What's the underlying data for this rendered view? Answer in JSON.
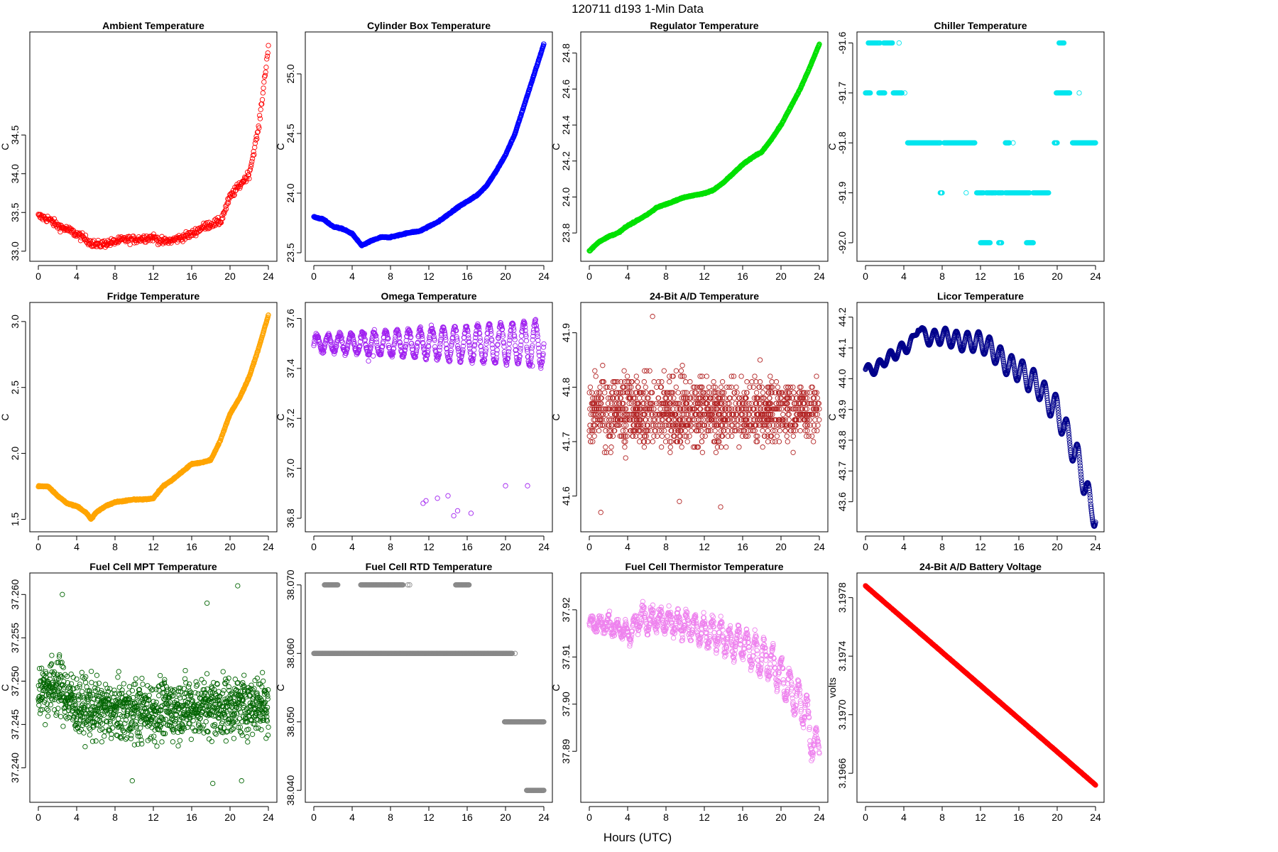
{
  "figure": {
    "title": "120711    d193    1-Min Data",
    "xlabel": "Hours (UTC)"
  },
  "chart_data": [
    {
      "type": "scatter",
      "title": "Ambient Temperature",
      "ylabel": "C",
      "color": "#ff0000",
      "xlim": [
        0,
        24
      ],
      "ylim": [
        32.98,
        35.72
      ],
      "xticks": [
        0,
        4,
        8,
        12,
        16,
        20,
        24
      ],
      "xtick_labels": [
        "0",
        "4",
        "8",
        "12",
        "16",
        "20",
        "24"
      ],
      "yticks": [
        33.0,
        33.5,
        34.0,
        34.5
      ],
      "ytick_labels": [
        "33.0",
        "33.5",
        "34.0",
        "34.5"
      ],
      "x": [
        0,
        1,
        2,
        3,
        4,
        5,
        6,
        7,
        8,
        9,
        10,
        11,
        12,
        13,
        14,
        15,
        16,
        17,
        18,
        19,
        20,
        21,
        22,
        23,
        24
      ],
      "y": [
        33.45,
        33.42,
        33.33,
        33.28,
        33.22,
        33.15,
        33.08,
        33.1,
        33.12,
        33.15,
        33.15,
        33.17,
        33.18,
        33.12,
        33.14,
        33.18,
        33.22,
        33.3,
        33.35,
        33.38,
        33.7,
        33.85,
        34.0,
        34.6,
        35.65
      ],
      "noise": 0.05,
      "n_points": 420
    },
    {
      "type": "scatter",
      "title": "Cylinder Box Temperature",
      "ylabel": "C",
      "color": "#0000ff",
      "xlim": [
        0,
        24
      ],
      "ylim": [
        23.5,
        25.28
      ],
      "xticks": [
        0,
        4,
        8,
        12,
        16,
        20,
        24
      ],
      "xtick_labels": [
        "0",
        "4",
        "8",
        "12",
        "16",
        "20",
        "24"
      ],
      "yticks": [
        23.5,
        24.0,
        24.5,
        25.0
      ],
      "ytick_labels": [
        "23.5",
        "24.0",
        "24.5",
        "25.0"
      ],
      "x": [
        0,
        1,
        2,
        3,
        4,
        5,
        6,
        7,
        8,
        9,
        10,
        11,
        12,
        13,
        14,
        15,
        16,
        17,
        18,
        19,
        20,
        21,
        22,
        23,
        24
      ],
      "y": [
        23.8,
        23.78,
        23.72,
        23.7,
        23.66,
        23.56,
        23.6,
        23.63,
        23.63,
        23.65,
        23.67,
        23.68,
        23.72,
        23.76,
        23.82,
        23.88,
        23.93,
        23.98,
        24.06,
        24.18,
        24.32,
        24.5,
        24.75,
        25.0,
        25.25
      ],
      "noise": 0.005,
      "n_points": 900
    },
    {
      "type": "scatter",
      "title": "Regulator Temperature",
      "ylabel": "C",
      "color": "#00e000",
      "xlim": [
        0,
        24
      ],
      "ylim": [
        23.69,
        24.87
      ],
      "xticks": [
        0,
        4,
        8,
        12,
        16,
        20,
        24
      ],
      "xtick_labels": [
        "0",
        "4",
        "8",
        "12",
        "16",
        "20",
        "24"
      ],
      "yticks": [
        23.8,
        24.0,
        24.2,
        24.4,
        24.6,
        24.8
      ],
      "ytick_labels": [
        "23.8",
        "24.0",
        "24.2",
        "24.4",
        "24.6",
        "24.8"
      ],
      "x": [
        0,
        1,
        2,
        3,
        4,
        5,
        6,
        7,
        8,
        9,
        10,
        11,
        12,
        13,
        14,
        15,
        16,
        17,
        18,
        19,
        20,
        21,
        22,
        23,
        24
      ],
      "y": [
        23.7,
        23.75,
        23.78,
        23.8,
        23.84,
        23.87,
        23.9,
        23.94,
        23.96,
        23.98,
        24.0,
        24.01,
        24.02,
        24.04,
        24.08,
        24.13,
        24.18,
        24.22,
        24.25,
        24.32,
        24.4,
        24.5,
        24.6,
        24.72,
        24.85
      ],
      "noise": 0.003,
      "n_points": 900
    },
    {
      "type": "scatter",
      "title": "Chiller Temperature",
      "ylabel": "C",
      "color": "#00e5ee",
      "xlim": [
        0,
        24
      ],
      "ylim": [
        -92.02,
        -91.595
      ],
      "xticks": [
        0,
        4,
        8,
        12,
        16,
        20,
        24
      ],
      "xtick_labels": [
        "0",
        "4",
        "8",
        "12",
        "16",
        "20",
        "24"
      ],
      "yticks": [
        -92.0,
        -91.9,
        -91.8,
        -91.7,
        -91.6
      ],
      "ytick_labels": [
        "-92.0",
        "-91.9",
        "-91.8",
        "-91.7",
        "-91.6"
      ],
      "segments": [
        {
          "y": -91.6,
          "from": 0.3,
          "to": 1.5
        },
        {
          "y": -91.6,
          "from": 1.9,
          "to": 2.8
        },
        {
          "y": -91.7,
          "from": 0.0,
          "to": 0.5
        },
        {
          "y": -91.7,
          "from": 1.4,
          "to": 2.0
        },
        {
          "y": -91.7,
          "from": 2.9,
          "to": 3.8
        },
        {
          "y": -91.8,
          "from": 4.4,
          "to": 7.8
        },
        {
          "y": -91.8,
          "from": 8.2,
          "to": 11.4
        },
        {
          "y": -91.8,
          "from": 14.6,
          "to": 15.0
        },
        {
          "y": -91.8,
          "from": 19.7,
          "to": 20.0
        },
        {
          "y": -91.8,
          "from": 21.6,
          "to": 24.0
        },
        {
          "y": -91.9,
          "from": 7.8,
          "to": 8.0
        },
        {
          "y": -91.9,
          "from": 11.6,
          "to": 12.3
        },
        {
          "y": -91.9,
          "from": 12.6,
          "to": 13.6
        },
        {
          "y": -91.9,
          "from": 13.8,
          "to": 14.3
        },
        {
          "y": -91.9,
          "from": 14.6,
          "to": 17.1
        },
        {
          "y": -91.9,
          "from": 17.5,
          "to": 19.1
        },
        {
          "y": -92.0,
          "from": 12.0,
          "to": 13.0
        },
        {
          "y": -92.0,
          "from": 13.9,
          "to": 14.2
        },
        {
          "y": -92.0,
          "from": 16.8,
          "to": 17.5
        },
        {
          "y": -91.7,
          "from": 19.9,
          "to": 21.3
        },
        {
          "y": -91.6,
          "from": 20.2,
          "to": 20.7
        }
      ],
      "extra": [
        [
          4.1,
          -91.7
        ],
        [
          15.4,
          -91.8
        ],
        [
          10.5,
          -91.9
        ],
        [
          3.5,
          -91.6
        ],
        [
          22.3,
          -91.7
        ]
      ]
    },
    {
      "type": "scatter",
      "title": "Fridge Temperature",
      "ylabel": "C",
      "color": "#ffa500",
      "xlim": [
        0,
        24
      ],
      "ylim": [
        1.47,
        3.08
      ],
      "xticks": [
        0,
        4,
        8,
        12,
        16,
        20,
        24
      ],
      "xtick_labels": [
        "0",
        "4",
        "8",
        "12",
        "16",
        "20",
        "24"
      ],
      "yticks": [
        1.5,
        2.0,
        2.5,
        3.0
      ],
      "ytick_labels": [
        "1.5",
        "2.0",
        "2.5",
        "3.0"
      ],
      "x": [
        0,
        1,
        2,
        3,
        4,
        5,
        5.5,
        6,
        7,
        8,
        9,
        10,
        11,
        12,
        13,
        14,
        15,
        16,
        17,
        18,
        19,
        20,
        21,
        22,
        23,
        24
      ],
      "y": [
        1.75,
        1.75,
        1.68,
        1.62,
        1.6,
        1.55,
        1.5,
        1.55,
        1.6,
        1.63,
        1.64,
        1.65,
        1.65,
        1.66,
        1.75,
        1.8,
        1.86,
        1.92,
        1.93,
        1.95,
        2.1,
        2.3,
        2.42,
        2.58,
        2.8,
        3.05
      ],
      "noise": 0.005,
      "n_points": 900
    },
    {
      "type": "scatter",
      "title": "Omega Temperature",
      "ylabel": "C",
      "color": "#a020f0",
      "xlim": [
        0,
        24
      ],
      "ylim": [
        36.78,
        37.63
      ],
      "xticks": [
        0,
        4,
        8,
        12,
        16,
        20,
        24
      ],
      "xtick_labels": [
        "0",
        "4",
        "8",
        "12",
        "16",
        "20",
        "24"
      ],
      "yticks": [
        36.8,
        37.0,
        37.2,
        37.4,
        37.6
      ],
      "ytick_labels": [
        "36.8",
        "37.0",
        "37.2",
        "37.4",
        "37.6"
      ],
      "x": [
        0,
        24
      ],
      "y": [
        37.5,
        37.5
      ],
      "osc_amp": [
        0.03,
        0.09
      ],
      "osc_period": 1.2,
      "noise": 0.01,
      "n_points": 700,
      "outliers": [
        [
          11.4,
          36.86
        ],
        [
          11.7,
          36.87
        ],
        [
          12.9,
          36.88
        ],
        [
          14.0,
          36.89
        ],
        [
          14.6,
          36.81
        ],
        [
          15.0,
          36.83
        ],
        [
          16.4,
          36.82
        ],
        [
          20.0,
          36.93
        ],
        [
          22.3,
          36.93
        ],
        [
          5.7,
          37.43
        ],
        [
          6.2,
          37.45
        ],
        [
          22.8,
          37.41
        ]
      ]
    },
    {
      "type": "scatter",
      "title": "24-Bit A/D Temperature",
      "ylabel": "C",
      "color": "#b22222",
      "xlim": [
        0,
        24
      ],
      "ylim": [
        41.55,
        41.94
      ],
      "xticks": [
        0,
        4,
        8,
        12,
        16,
        20,
        24
      ],
      "xtick_labels": [
        "0",
        "4",
        "8",
        "12",
        "16",
        "20",
        "24"
      ],
      "yticks": [
        41.6,
        41.7,
        41.8,
        41.9
      ],
      "ytick_labels": [
        "41.6",
        "41.7",
        "41.8",
        "41.9"
      ],
      "quantized": [
        41.57,
        41.58,
        41.59,
        41.6,
        41.61,
        41.62,
        41.63,
        41.64,
        41.65,
        41.66,
        41.67,
        41.68,
        41.69,
        41.7,
        41.71,
        41.72,
        41.73,
        41.74,
        41.75,
        41.76,
        41.77,
        41.78,
        41.79,
        41.8,
        41.81,
        41.82,
        41.83,
        41.84,
        41.85,
        41.86,
        41.87,
        41.88
      ],
      "center": 41.755,
      "spread": 0.055,
      "n_points": 1300,
      "outliers": [
        [
          6.6,
          41.93
        ],
        [
          1.2,
          41.57
        ],
        [
          13.7,
          41.58
        ],
        [
          9.4,
          41.59
        ]
      ]
    },
    {
      "type": "scatter",
      "title": "Licor Temperature",
      "ylabel": "C",
      "color": "#00008b",
      "xlim": [
        0,
        24
      ],
      "ylim": [
        43.53,
        44.22
      ],
      "xticks": [
        0,
        4,
        8,
        12,
        16,
        20,
        24
      ],
      "xtick_labels": [
        "0",
        "4",
        "8",
        "12",
        "16",
        "20",
        "24"
      ],
      "yticks": [
        43.6,
        43.7,
        43.8,
        43.9,
        44.0,
        44.1,
        44.2
      ],
      "ytick_labels": [
        "43.6",
        "43.7",
        "43.8",
        "43.9",
        "44.0",
        "44.1",
        "44.2"
      ],
      "x": [
        0,
        1,
        2,
        3,
        4,
        5,
        5.5,
        6,
        7,
        8,
        9,
        10,
        11,
        12,
        13,
        14,
        15,
        16,
        17,
        18,
        19,
        20,
        21,
        22,
        23,
        23.5,
        24
      ],
      "y": [
        44.03,
        44.03,
        44.06,
        44.08,
        44.1,
        44.12,
        44.18,
        44.14,
        44.13,
        44.14,
        44.13,
        44.12,
        44.12,
        44.12,
        44.1,
        44.07,
        44.04,
        44.03,
        44.0,
        43.98,
        43.93,
        43.9,
        43.82,
        43.75,
        43.65,
        43.57,
        43.57
      ],
      "osc_amp": [
        0.015,
        0.05
      ],
      "osc_period": 1.15,
      "noise": 0.0,
      "n_points": 900
    },
    {
      "type": "scatter",
      "title": "Fuel Cell MPT Temperature",
      "ylabel": "C",
      "color": "#006400",
      "xlim": [
        0,
        24
      ],
      "ylim": [
        37.237,
        37.2615
      ],
      "xticks": [
        0,
        4,
        8,
        12,
        16,
        20,
        24
      ],
      "xtick_labels": [
        "0",
        "4",
        "8",
        "12",
        "16",
        "20",
        "24"
      ],
      "yticks": [
        37.24,
        37.245,
        37.25,
        37.255,
        37.26
      ],
      "ytick_labels": [
        "37.240",
        "37.245",
        "37.250",
        "37.255",
        "37.260"
      ],
      "x": [
        0,
        2,
        4,
        8,
        12,
        16,
        20,
        24
      ],
      "y": [
        37.249,
        37.2495,
        37.247,
        37.2465,
        37.2465,
        37.247,
        37.247,
        37.2475
      ],
      "noise": 0.0034,
      "n_points": 1200,
      "outliers": [
        [
          2.5,
          37.26
        ],
        [
          20.8,
          37.261
        ],
        [
          17.6,
          37.259
        ],
        [
          9.8,
          37.2385
        ],
        [
          18.2,
          37.2382
        ],
        [
          21.2,
          37.2385
        ]
      ]
    },
    {
      "type": "scatter",
      "title": "Fuel Cell RTD Temperature",
      "ylabel": "C",
      "color": "#888888",
      "xlim": [
        0,
        24
      ],
      "ylim": [
        38.0395,
        38.0705
      ],
      "xticks": [
        0,
        4,
        8,
        12,
        16,
        20,
        24
      ],
      "xtick_labels": [
        "0",
        "4",
        "8",
        "12",
        "16",
        "20",
        "24"
      ],
      "yticks": [
        38.04,
        38.05,
        38.06,
        38.07
      ],
      "ytick_labels": [
        "38.040",
        "38.050",
        "38.060",
        "38.070"
      ],
      "segments": [
        {
          "y": 38.06,
          "from": 0.0,
          "to": 20.7
        },
        {
          "y": 38.07,
          "from": 1.1,
          "to": 2.5
        },
        {
          "y": 38.07,
          "from": 4.9,
          "to": 9.3
        },
        {
          "y": 38.07,
          "from": 14.8,
          "to": 16.2
        },
        {
          "y": 38.05,
          "from": 19.9,
          "to": 24.0
        },
        {
          "y": 38.04,
          "from": 22.2,
          "to": 24.0
        }
      ],
      "extra": [
        [
          9.8,
          38.07
        ],
        [
          10.0,
          38.07
        ],
        [
          21.0,
          38.06
        ]
      ]
    },
    {
      "type": "scatter",
      "title": "Fuel Cell Thermistor Temperature",
      "ylabel": "C",
      "color": "#ee82ee",
      "xlim": [
        0,
        24
      ],
      "ylim": [
        37.881,
        37.926
      ],
      "xticks": [
        0,
        4,
        8,
        12,
        16,
        20,
        24
      ],
      "xtick_labels": [
        "0",
        "4",
        "8",
        "12",
        "16",
        "20",
        "24"
      ],
      "yticks": [
        37.89,
        37.9,
        37.91,
        37.92
      ],
      "ytick_labels": [
        "37.89",
        "37.90",
        "37.91",
        "37.92"
      ],
      "x": [
        0,
        1,
        2,
        3,
        4,
        5,
        5.5,
        6,
        7,
        8,
        9,
        10,
        11,
        12,
        13,
        14,
        15,
        16,
        17,
        18,
        19,
        20,
        21,
        22,
        22.5,
        23,
        23.5,
        24
      ],
      "y": [
        37.917,
        37.917,
        37.917,
        37.916,
        37.915,
        37.917,
        37.919,
        37.918,
        37.918,
        37.918,
        37.917,
        37.917,
        37.916,
        37.915,
        37.915,
        37.914,
        37.913,
        37.913,
        37.911,
        37.91,
        37.909,
        37.906,
        37.903,
        37.9,
        37.899,
        37.895,
        37.89,
        37.893
      ],
      "osc_amp": [
        0.0012,
        0.004
      ],
      "osc_period": 0.9,
      "noise": 0.0014,
      "n_points": 900
    },
    {
      "type": "scatter",
      "title": "24-Bit A/D Battery Voltage",
      "ylabel": "volts",
      "color": "#ff0000",
      "xlim": [
        0,
        24
      ],
      "ylim": [
        3.19646,
        3.19791
      ],
      "xticks": [
        0,
        4,
        8,
        12,
        16,
        20,
        24
      ],
      "xtick_labels": [
        "0",
        "4",
        "8",
        "12",
        "16",
        "20",
        "24"
      ],
      "yticks": [
        3.1966,
        3.197,
        3.1974,
        3.1978
      ],
      "ytick_labels": [
        "3.1966",
        "3.1970",
        "3.1974",
        "3.1978"
      ],
      "x": [
        0,
        24
      ],
      "y": [
        3.19788,
        3.19652
      ],
      "noise": 1.5e-06,
      "n_points": 1000
    }
  ]
}
